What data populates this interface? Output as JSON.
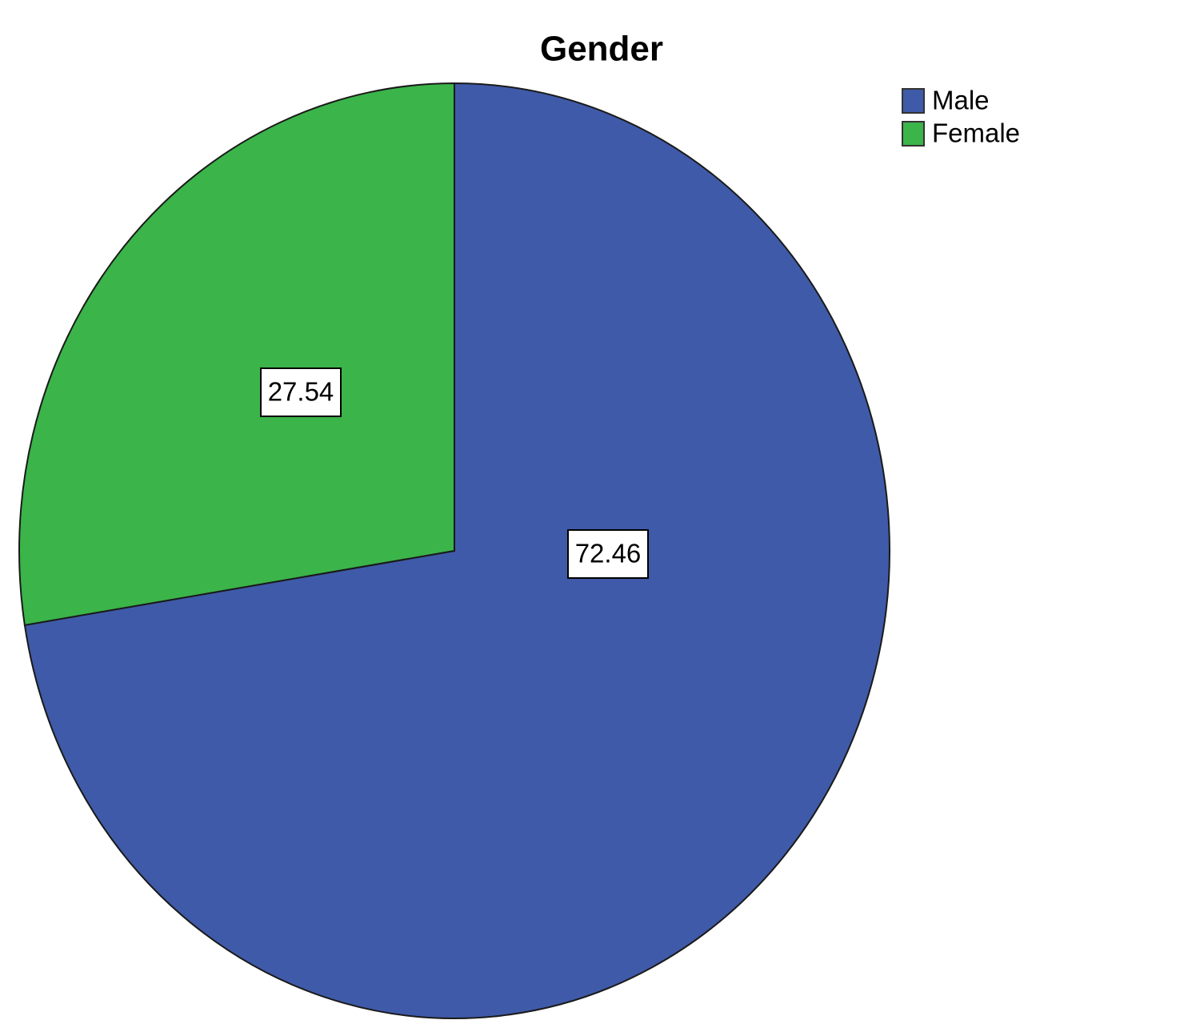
{
  "chart_data": {
    "type": "pie",
    "title": "Gender",
    "categories": [
      "Male",
      "Female"
    ],
    "values": [
      72.46,
      27.54
    ],
    "colors": [
      "#3f5aa8",
      "#3bb44a"
    ],
    "legend": "top-right"
  }
}
